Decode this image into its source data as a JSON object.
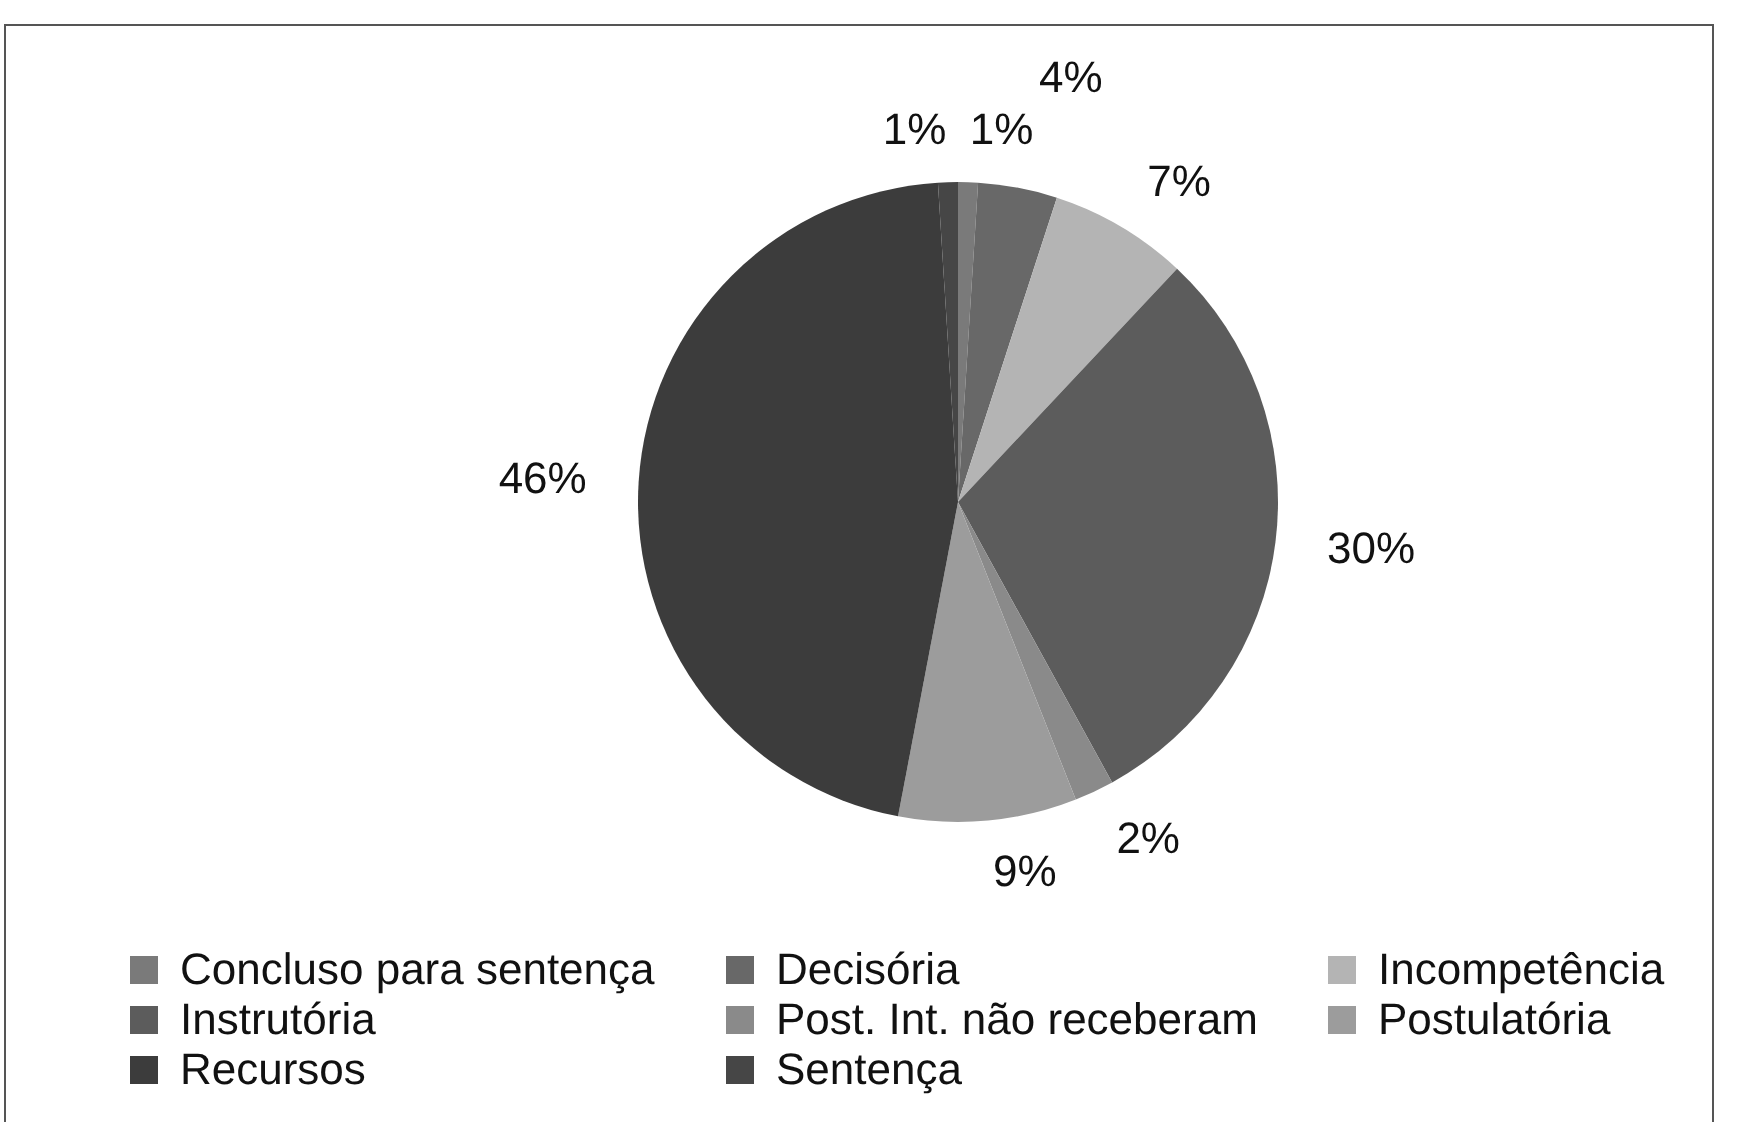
{
  "chart_data": {
    "type": "pie",
    "categories": [
      "Concluso para sentença",
      "Decisória",
      "Incompetência",
      "Instrutória",
      "Post. Int. não receberam",
      "Postulatória",
      "Recursos",
      "Sentença"
    ],
    "values": [
      1,
      4,
      7,
      30,
      2,
      9,
      46,
      1
    ],
    "value_labels": [
      "1%",
      "4%",
      "7%",
      "30%",
      "2%",
      "9%",
      "46%",
      "1%"
    ],
    "colors": [
      "#7a7a7a",
      "#686868",
      "#b4b4b4",
      "#5c5c5c",
      "#8a8a8a",
      "#9c9c9c",
      "#3c3c3c",
      "#464646"
    ],
    "legend": "bottom"
  }
}
